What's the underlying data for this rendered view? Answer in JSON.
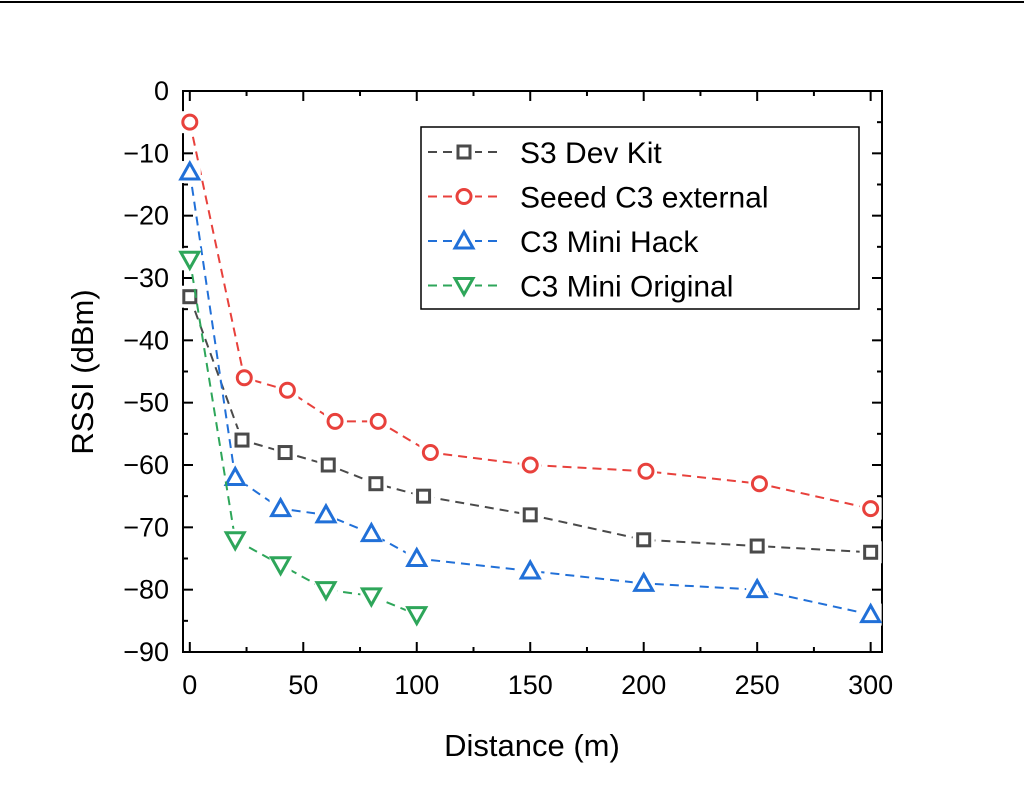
{
  "chart_data": {
    "type": "line",
    "title": "",
    "xlabel": "Distance (m)",
    "ylabel": "RSSI (dBm)",
    "xlim": [
      -3,
      305
    ],
    "ylim": [
      -90,
      0
    ],
    "xticks": [
      0,
      50,
      100,
      150,
      200,
      250,
      300
    ],
    "yticks": [
      0,
      -10,
      -20,
      -30,
      -40,
      -50,
      -60,
      -70,
      -80,
      -90
    ],
    "xtick_labels": [
      "0",
      "50",
      "100",
      "150",
      "200",
      "250",
      "300"
    ],
    "ytick_labels": [
      "0",
      "−10",
      "−20",
      "−30",
      "−40",
      "−50",
      "−60",
      "−70",
      "−80",
      "−90"
    ],
    "grid": false,
    "legend_position": "top-right",
    "series": [
      {
        "name": "S3 Dev Kit",
        "color": "#4a4a4a",
        "marker": "square",
        "x": [
          0,
          23,
          42,
          61,
          82,
          103,
          150,
          200,
          250,
          300
        ],
        "y": [
          -33,
          -56,
          -58,
          -60,
          -63,
          -65,
          -68,
          -72,
          -73,
          -74
        ]
      },
      {
        "name": "Seeed C3 external",
        "color": "#e8413c",
        "marker": "circle",
        "x": [
          0,
          24,
          43,
          64,
          83,
          106,
          150,
          201,
          251,
          300
        ],
        "y": [
          -5,
          -46,
          -48,
          -53,
          -53,
          -58,
          -60,
          -61,
          -63,
          -67
        ]
      },
      {
        "name": "C3 Mini Hack",
        "color": "#2170d8",
        "marker": "triangle-up",
        "x": [
          0,
          20,
          40,
          60,
          80,
          100,
          150,
          200,
          250,
          300
        ],
        "y": [
          -13,
          -62,
          -67,
          -68,
          -71,
          -75,
          -77,
          -79,
          -80,
          -84
        ]
      },
      {
        "name": "C3 Mini Original",
        "color": "#2ea65a",
        "marker": "triangle-down",
        "x": [
          0,
          20,
          40,
          60,
          80,
          100
        ],
        "y": [
          -27,
          -72,
          -76,
          -80,
          -81,
          -84
        ]
      }
    ]
  }
}
